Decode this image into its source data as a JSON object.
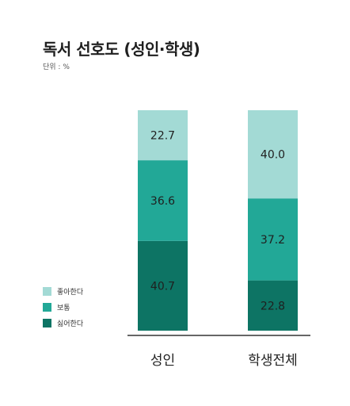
{
  "title": "독서 선호도 (성인·학생)",
  "unit_label": "단위 : %",
  "legend": {
    "items": [
      {
        "label": "좋아한다",
        "color": "#a3dad5"
      },
      {
        "label": "보통",
        "color": "#22a897"
      },
      {
        "label": "싫어한다",
        "color": "#0d7464"
      }
    ]
  },
  "chart_data": {
    "type": "bar",
    "stacked": true,
    "categories": [
      "성인",
      "학생전체"
    ],
    "series": [
      {
        "name": "싫어한다",
        "values": [
          40.7,
          22.8
        ],
        "color": "#0d7464"
      },
      {
        "name": "보통",
        "values": [
          36.6,
          37.2
        ],
        "color": "#22a897"
      },
      {
        "name": "좋아한다",
        "values": [
          22.7,
          40.0
        ],
        "color": "#a3dad5"
      }
    ],
    "ylim": [
      0,
      100
    ],
    "grid": false,
    "legend_position": "bottom-left"
  }
}
